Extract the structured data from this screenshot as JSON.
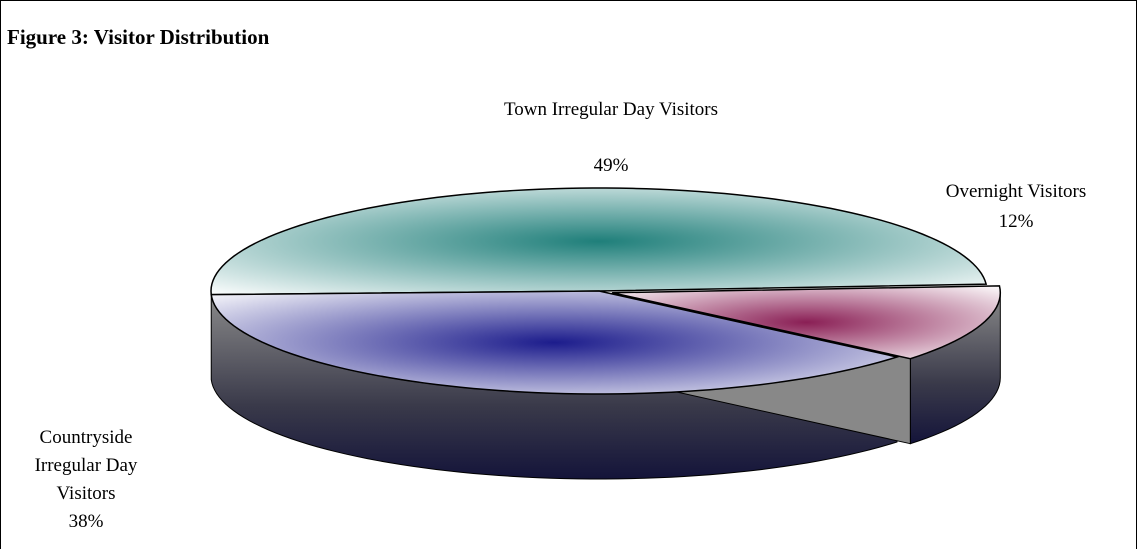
{
  "chart_data": {
    "type": "pie",
    "title": "Figure 3: Visitor Distribution",
    "categories": [
      "Town Irregular Day Visitors",
      "Overnight Visitors",
      "Countryside Irregular Day Visitors"
    ],
    "values": [
      49,
      12,
      38
    ],
    "value_labels": [
      "49%",
      "12%",
      "38%"
    ],
    "colors": [
      "#1f7f7a",
      "#8a1f55",
      "#1c1c8c"
    ]
  }
}
